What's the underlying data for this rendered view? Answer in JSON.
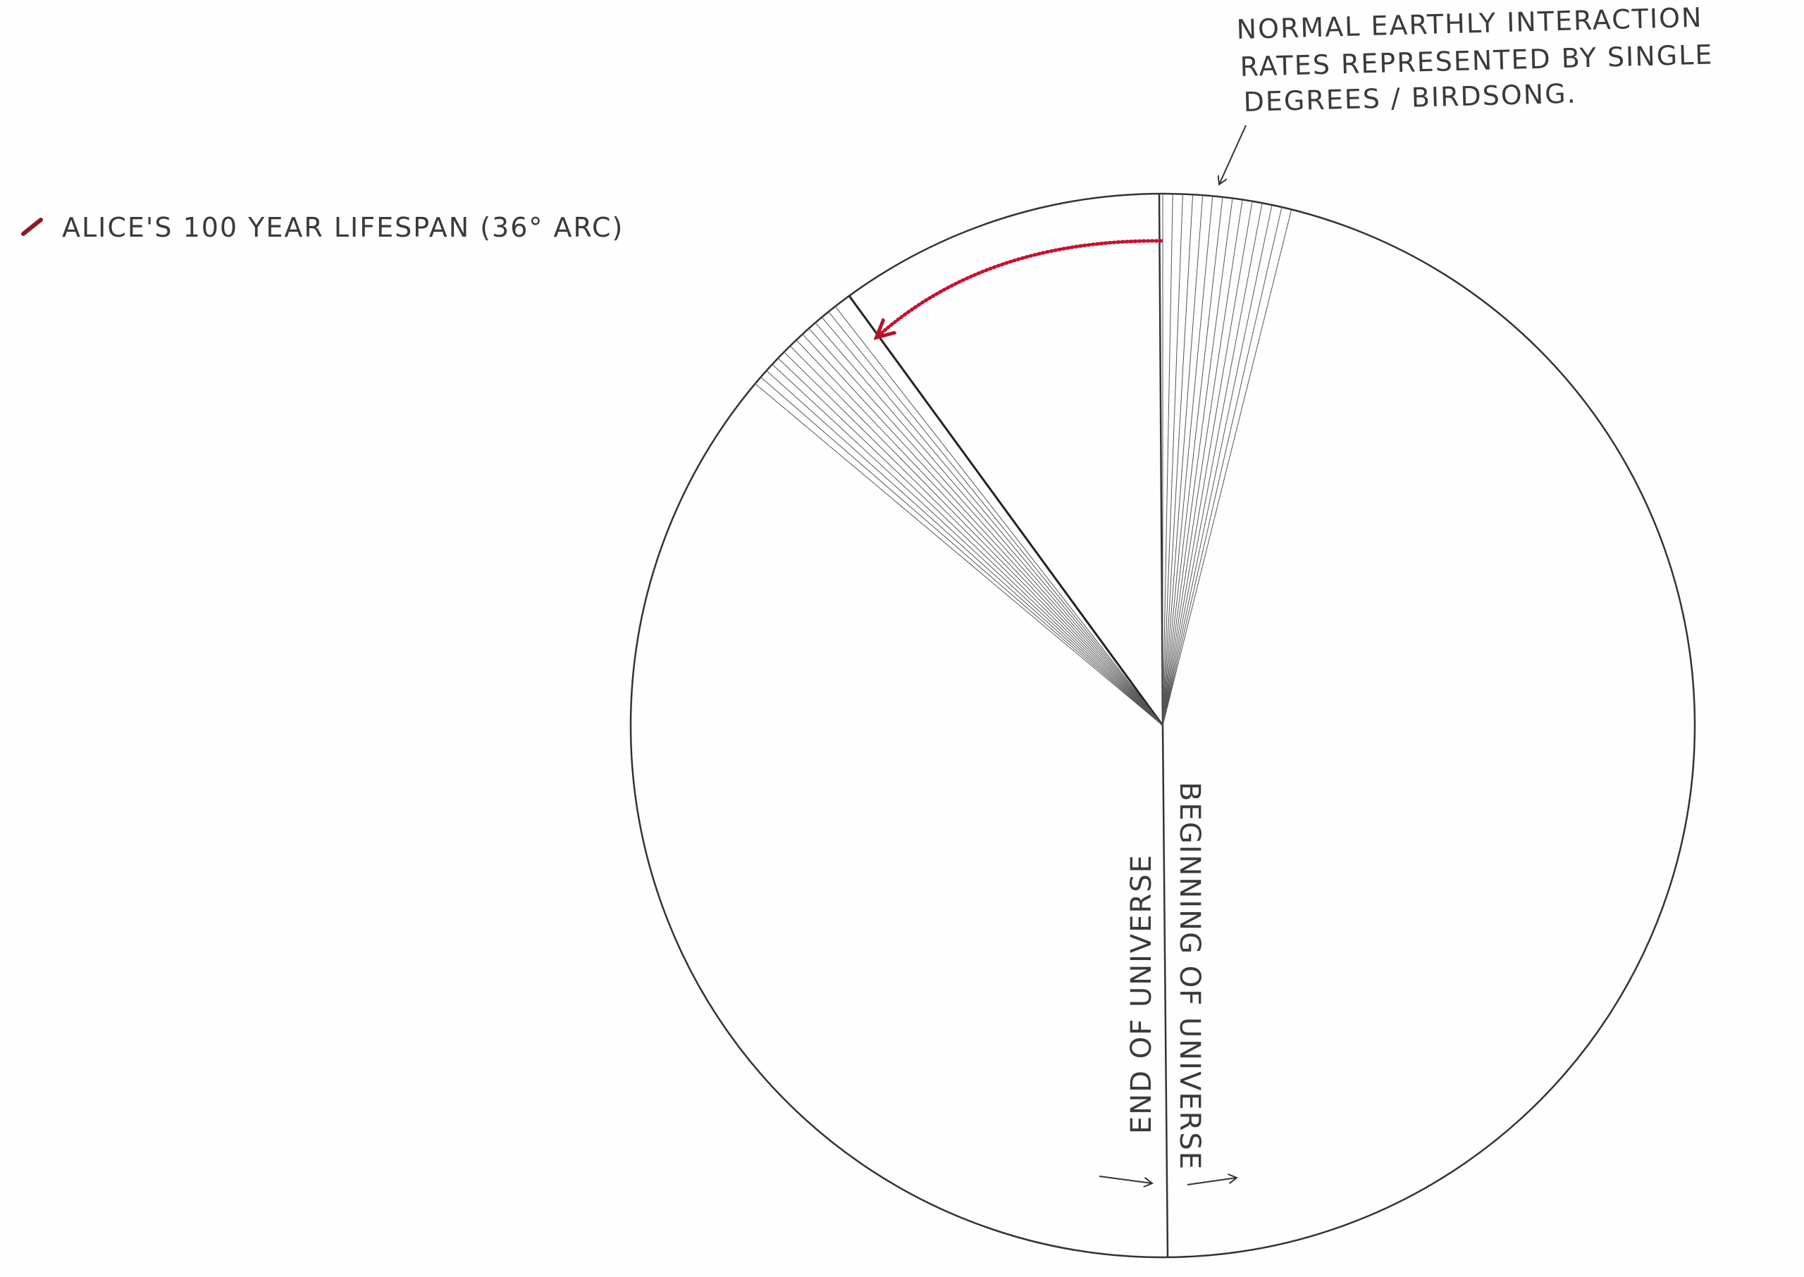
{
  "legend": {
    "swatch_color": "#8b1a2b",
    "label": "ALICE'S 100 YEAR LIFESPAN (36° ARC)"
  },
  "annotation": {
    "lines": [
      "NORMAL EARTHLY INTERACTION",
      "RATES REPRESENTED BY SINGLE",
      "DEGREES / BIRDSONG."
    ]
  },
  "axis": {
    "end_label": "END OF UNIVERSE",
    "beginning_label": "BEGINNING OF UNIVERSE"
  },
  "diagram": {
    "lifespan_arc_degrees": 36,
    "single_degree_wedges": 2,
    "arc_color": "#c8102e",
    "line_color": "#333333"
  }
}
